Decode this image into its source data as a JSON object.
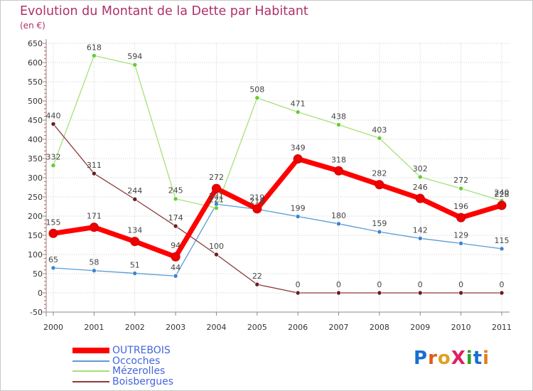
{
  "header": {
    "title": "Evolution du Montant de la Dette par Habitant",
    "subtitle": "(en €)"
  },
  "logo": {
    "text": "ProXiti",
    "letter_colors": [
      "#1a6fd0",
      "#e05a1a",
      "#e0a020",
      "#e02060",
      "#30a030",
      "#1a6fd0",
      "#e08020"
    ]
  },
  "colors": {
    "title": "#b0306a",
    "legend_text": "#4466dd",
    "grid": "#cccccc"
  },
  "chart_data": {
    "type": "line",
    "title": "Evolution du Montant de la Dette par Habitant",
    "ylabel": "(en €)",
    "xlabel": "",
    "x": [
      "2000",
      "2001",
      "2002",
      "2003",
      "2004",
      "2005",
      "2006",
      "2007",
      "2008",
      "2009",
      "2010",
      "2011"
    ],
    "ylim": [
      -50,
      650
    ],
    "yticks": [
      -50,
      0,
      50,
      100,
      150,
      200,
      250,
      300,
      350,
      400,
      450,
      500,
      550,
      600,
      650
    ],
    "grid": true,
    "legend_position": "bottom-left",
    "series": [
      {
        "name": "OUTREBOIS",
        "color": "#ff0000",
        "point_color": "#ee0000",
        "width": 7,
        "values": [
          155,
          171,
          134,
          94,
          272,
          219,
          349,
          318,
          282,
          246,
          196,
          228
        ]
      },
      {
        "name": "Occoches",
        "color": "#5b9bd5",
        "point_color": "#3a86d0",
        "width": 1.3,
        "values": [
          65,
          58,
          51,
          44,
          231,
          218,
          199,
          180,
          159,
          142,
          129,
          115
        ]
      },
      {
        "name": "Mézerolles",
        "color": "#a6e07a",
        "point_color": "#66cc33",
        "width": 1.3,
        "values": [
          332,
          618,
          594,
          245,
          221,
          508,
          471,
          438,
          403,
          302,
          272,
          240
        ]
      },
      {
        "name": "Boisbergues",
        "color": "#8a3a3a",
        "point_color": "#6a1e1e",
        "width": 1.3,
        "values": [
          440,
          311,
          244,
          174,
          100,
          22,
          0,
          0,
          0,
          0,
          0,
          0
        ]
      }
    ]
  }
}
